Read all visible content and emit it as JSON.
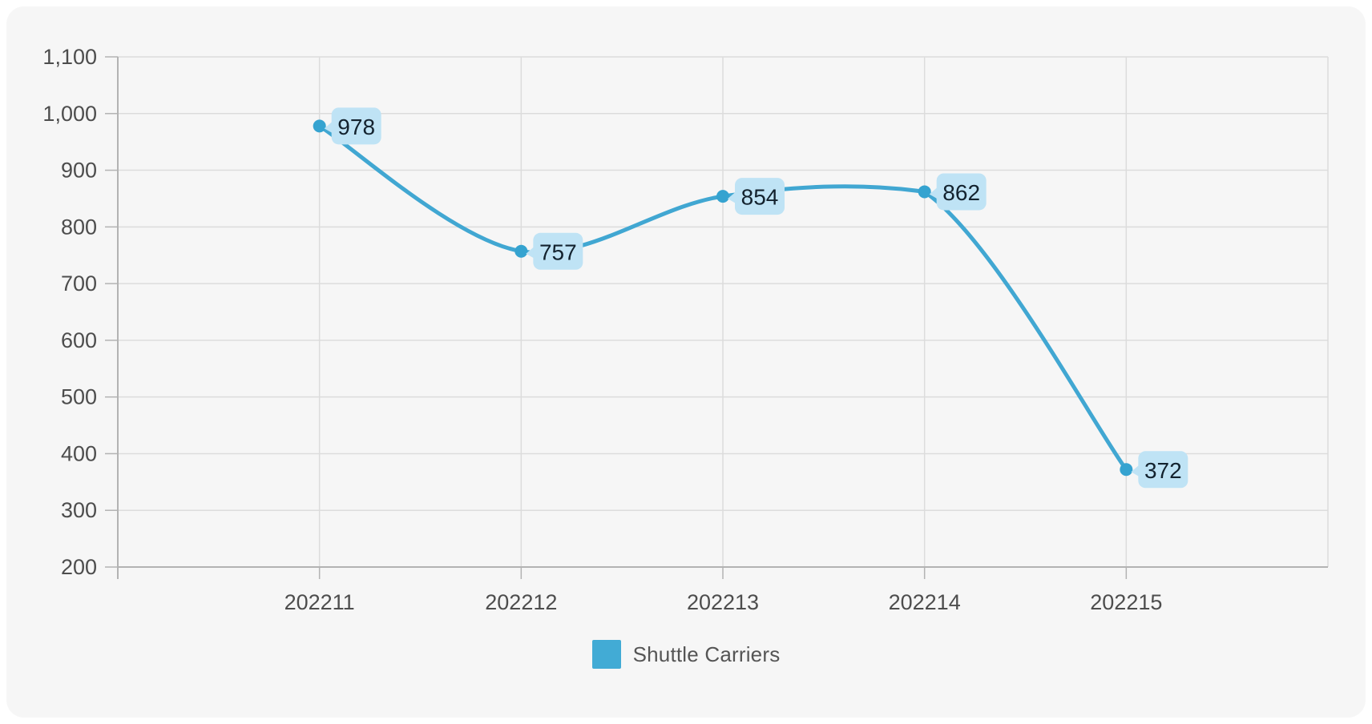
{
  "chart_data": {
    "type": "line",
    "title": "",
    "legend": "Shuttle Carriers",
    "legend_position": "bottom",
    "smooth": true,
    "grid": true,
    "categories": [
      "202211",
      "202212",
      "202213",
      "202214",
      "202215"
    ],
    "series": [
      {
        "name": "Shuttle Carriers",
        "values": [
          978,
          757,
          854,
          862,
          372
        ]
      }
    ],
    "data_labels": [
      "978",
      "757",
      "854",
      "862",
      "372"
    ],
    "ylim": [
      200,
      1100
    ],
    "ytick_step": 100,
    "ytick_labels": [
      "200",
      "300",
      "400",
      "500",
      "600",
      "700",
      "800",
      "900",
      "1,000",
      "1,100"
    ],
    "colors": {
      "page_bg": "#ffffff",
      "panel_bg": "#f6f6f6",
      "grid_line": "#dcdcdc",
      "axis_line": "#b3b3b3",
      "tick_line": "#b3b3b3",
      "axis_text": "#4d4d4d",
      "line": "#41a7d2",
      "marker": "#35a3d0",
      "label_bg": "#bfe3f5",
      "label_text": "#13222e",
      "legend_swatch": "#42abd5",
      "legend_text": "#555555"
    }
  }
}
